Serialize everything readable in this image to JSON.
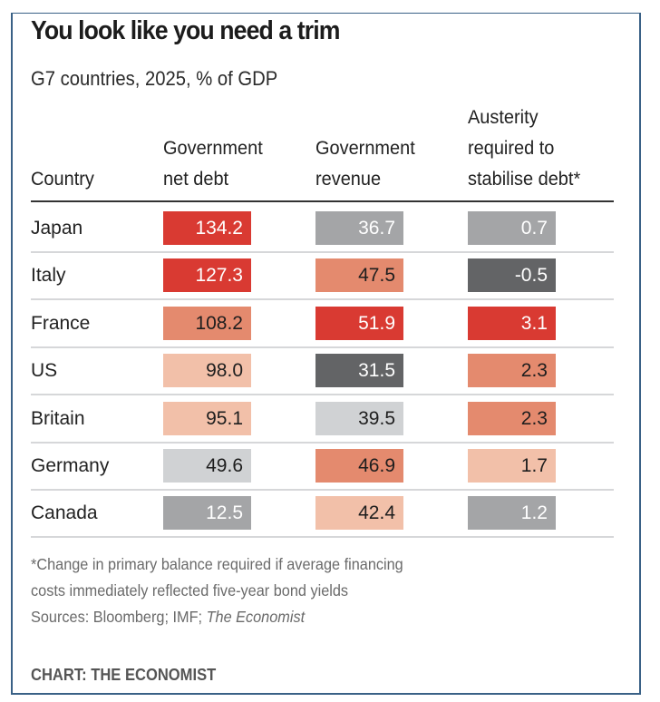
{
  "chart_data": {
    "type": "table",
    "title": "You look like you need a trim",
    "subtitle": "G7 countries, 2025, % of GDP",
    "columns": [
      {
        "key": "country",
        "label_lines": [
          "Country"
        ]
      },
      {
        "key": "net_debt",
        "label_lines": [
          "Government",
          "net debt"
        ]
      },
      {
        "key": "revenue",
        "label_lines": [
          "Government",
          "revenue"
        ]
      },
      {
        "key": "austerity",
        "label_lines": [
          "Austerity",
          "required to",
          "stabilise debt*"
        ]
      }
    ],
    "rows": [
      {
        "country": "Japan",
        "net_debt": "134.2",
        "revenue": "36.7",
        "austerity": "0.7"
      },
      {
        "country": "Italy",
        "net_debt": "127.3",
        "revenue": "47.5",
        "austerity": "-0.5"
      },
      {
        "country": "France",
        "net_debt": "108.2",
        "revenue": "51.9",
        "austerity": "3.1"
      },
      {
        "country": "US",
        "net_debt": "98.0",
        "revenue": "31.5",
        "austerity": "2.3"
      },
      {
        "country": "Britain",
        "net_debt": "95.1",
        "revenue": "39.5",
        "austerity": "2.3"
      },
      {
        "country": "Germany",
        "net_debt": "49.6",
        "revenue": "46.9",
        "austerity": "1.7"
      },
      {
        "country": "Canada",
        "net_debt": "12.5",
        "revenue": "42.4",
        "austerity": "1.2"
      }
    ],
    "cell_shades": [
      [
        "red-dark",
        "gray-mid",
        "gray-mid"
      ],
      [
        "red-dark",
        "red-mid",
        "gray-dark"
      ],
      [
        "red-mid",
        "red-dark",
        "red-dark"
      ],
      [
        "red-light",
        "gray-dark",
        "red-mid"
      ],
      [
        "red-light",
        "gray-light",
        "red-mid"
      ],
      [
        "gray-light",
        "red-mid",
        "red-light"
      ],
      [
        "gray-mid",
        "red-light",
        "gray-mid"
      ]
    ],
    "palette": {
      "red-dark": {
        "bg": "#d93a32",
        "fg": "#ffffff"
      },
      "red-mid": {
        "bg": "#e48a6e",
        "fg": "#1e1e1e"
      },
      "red-light": {
        "bg": "#f2c0a9",
        "fg": "#1e1e1e"
      },
      "gray-light": {
        "bg": "#d0d2d4",
        "fg": "#1e1e1e"
      },
      "gray-mid": {
        "bg": "#a4a5a7",
        "fg": "#ffffff"
      },
      "gray-dark": {
        "bg": "#636466",
        "fg": "#ffffff"
      }
    },
    "footnote_lines": [
      "*Change in primary balance required if average financing",
      "costs immediately reflected five-year bond yields"
    ],
    "sources_prefix": "Sources: Bloomberg; IMF; ",
    "sources_italic": "The Economist",
    "credit": "CHART: THE ECONOMIST"
  },
  "frame_color": "#3a6186"
}
